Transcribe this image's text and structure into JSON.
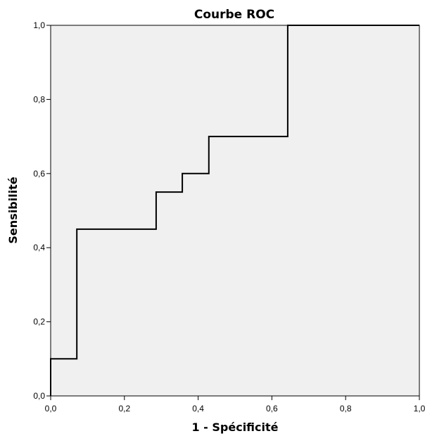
{
  "chart_data": {
    "type": "line",
    "title": "Courbe ROC",
    "xlabel": "1 - Spécificité",
    "ylabel": "Sensibilité",
    "xlim": [
      0,
      1
    ],
    "ylim": [
      0,
      1
    ],
    "xticks": [
      "0,0",
      "0,2",
      "0,4",
      "0,6",
      "0,8",
      "1,0"
    ],
    "yticks": [
      "0,0",
      "0,2",
      "0,4",
      "0,6",
      "0,8",
      "1,0"
    ],
    "grid": false,
    "plot_background": "#f0f0f0",
    "line_color": "#000000",
    "series": [
      {
        "x": [
          0,
          0,
          0.071,
          0.071,
          0.286,
          0.286,
          0.357,
          0.357,
          0.429,
          0.429,
          0.643,
          0.643,
          1.0
        ],
        "y": [
          0,
          0.1,
          0.1,
          0.45,
          0.45,
          0.55,
          0.55,
          0.6,
          0.6,
          0.7,
          0.7,
          1.0,
          1.0
        ]
      }
    ]
  }
}
